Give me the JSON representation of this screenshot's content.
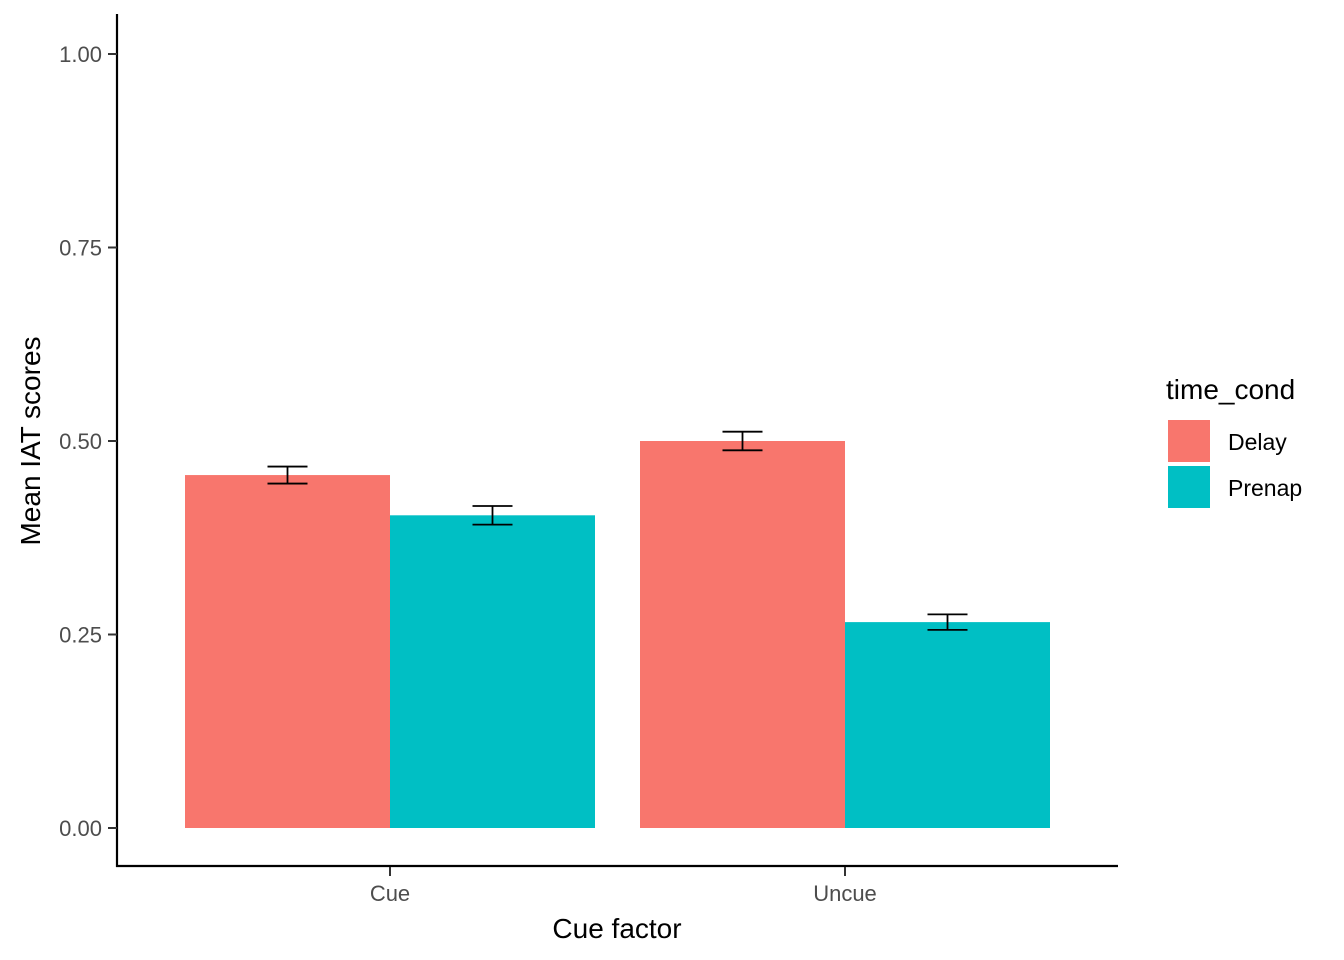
{
  "chart_data": {
    "type": "bar",
    "categories": [
      "Cue",
      "Uncue"
    ],
    "series": [
      {
        "name": "Delay",
        "values": [
          0.456,
          0.5
        ],
        "errors": [
          0.011,
          0.012
        ],
        "color": "#F8766D"
      },
      {
        "name": "Prenap",
        "values": [
          0.404,
          0.266
        ],
        "errors": [
          0.012,
          0.01
        ],
        "color": "#00BFC4"
      }
    ],
    "xlabel": "Cue factor",
    "ylabel": "Mean IAT scores",
    "ylim": [
      0,
      1
    ],
    "yticks": [
      "0.00",
      "0.25",
      "0.50",
      "0.75",
      "1.00"
    ],
    "legend": {
      "title": "time_cond",
      "position": "right"
    },
    "grid": false
  }
}
